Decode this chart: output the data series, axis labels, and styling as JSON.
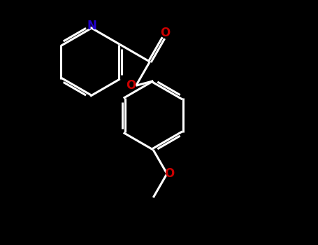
{
  "bg_color": "#000000",
  "bond_color": "#ffffff",
  "nitrogen_color": "#2200cc",
  "oxygen_color": "#cc0000",
  "line_width": 2.2,
  "dbo": 0.06,
  "figsize": [
    4.55,
    3.5
  ],
  "dpi": 100,
  "xlim": [
    -2.5,
    3.5
  ],
  "ylim": [
    -3.5,
    2.5
  ]
}
